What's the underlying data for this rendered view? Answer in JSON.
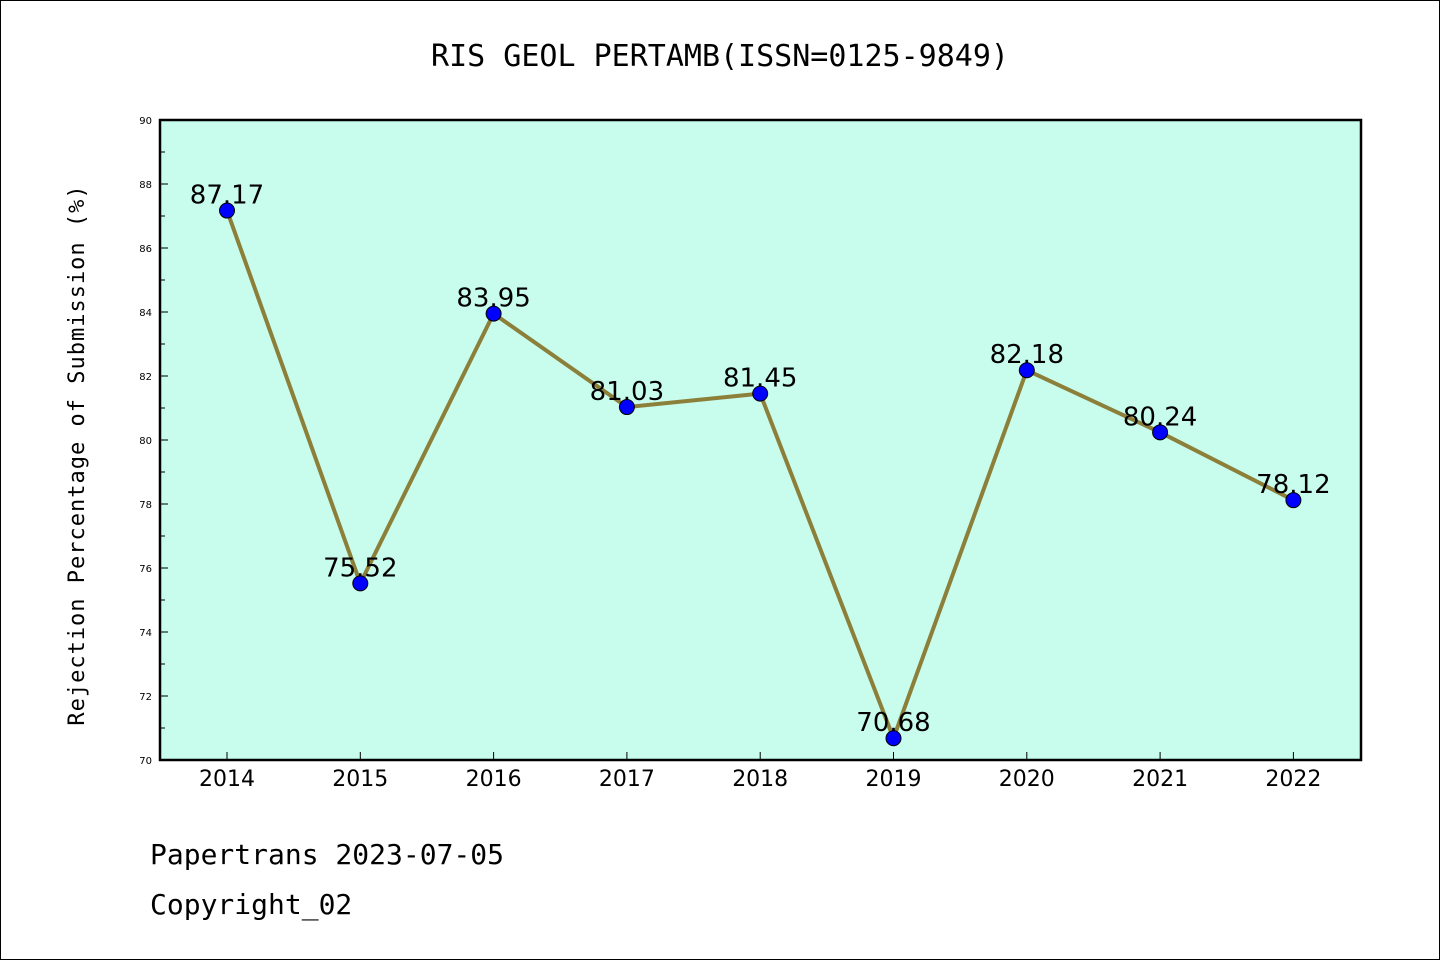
{
  "chart_data": {
    "type": "line",
    "title": "RIS GEOL PERTAMB(ISSN=0125-9849)",
    "xlabel": "",
    "ylabel": "Rejection Percentage of Submission (%)",
    "categories": [
      "2014",
      "2015",
      "2016",
      "2017",
      "2018",
      "2019",
      "2020",
      "2021",
      "2022"
    ],
    "values": [
      87.17,
      75.52,
      83.95,
      81.03,
      81.45,
      70.68,
      82.18,
      80.24,
      78.12
    ],
    "data_labels": [
      "87.17",
      "75.52",
      "83.95",
      "81.03",
      "81.45",
      "70.68",
      "82.18",
      "80.24",
      "78.12"
    ],
    "ylim": [
      70,
      90
    ],
    "yticks": [
      70,
      72,
      74,
      76,
      78,
      80,
      82,
      84,
      86,
      88,
      90
    ],
    "grid": false,
    "colors": {
      "plot_background": "#c8fcec",
      "line": "#8c7f3a",
      "marker": "#0000ff",
      "axes": "#000000"
    }
  },
  "footer": {
    "line1": "Papertrans 2023-07-05",
    "line2": "Copyright_02"
  }
}
